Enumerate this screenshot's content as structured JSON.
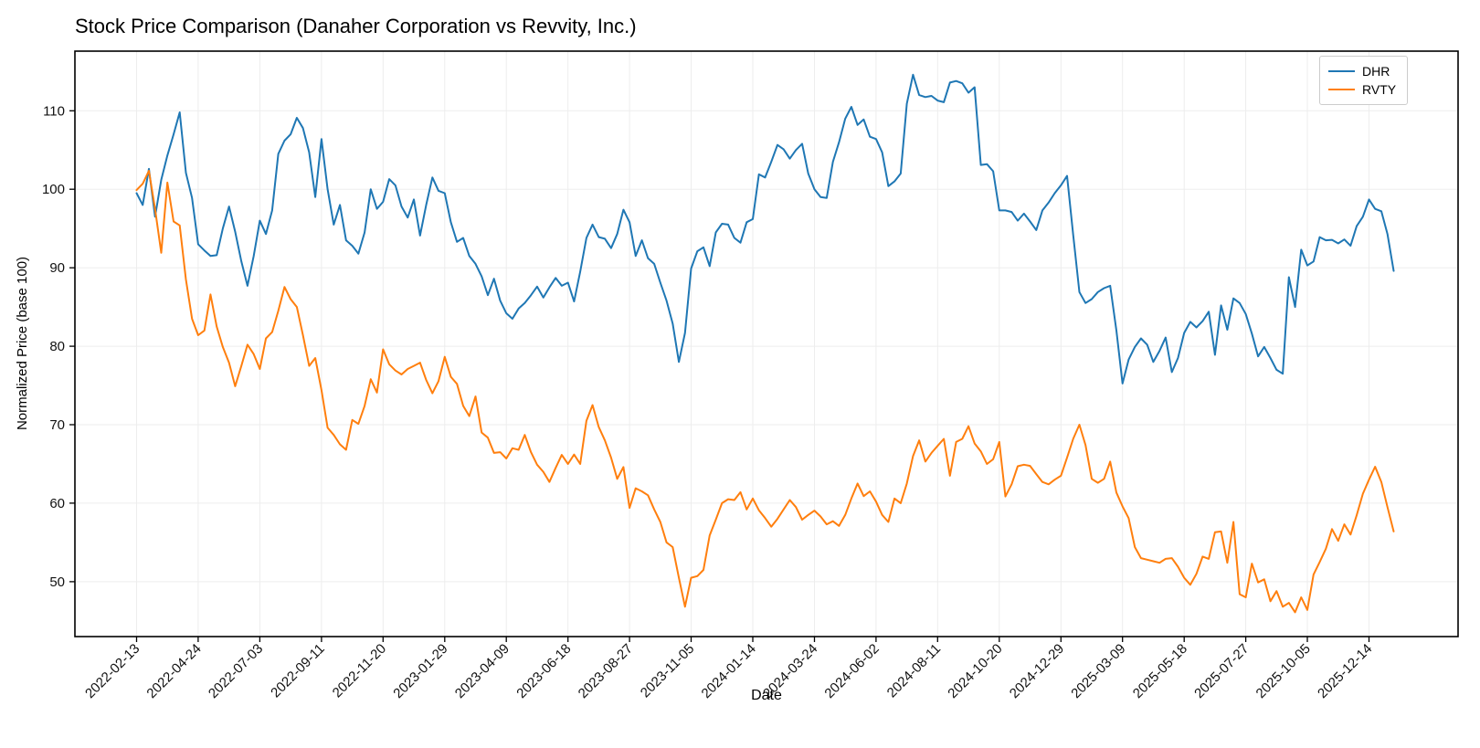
{
  "chart_data": {
    "type": "line",
    "title": "Stock Price Comparison (Danaher Corporation vs Revvity, Inc.)",
    "xlabel": "Date",
    "ylabel": "Normalized Price (base 100)",
    "grid": true,
    "legend": {
      "position": "upper right"
    },
    "y_ticks": [
      50,
      60,
      70,
      80,
      90,
      100,
      110
    ],
    "ylim": [
      43.0,
      117.6
    ],
    "x_tick_labels": [
      "2022-02-13",
      "2022-04-24",
      "2022-07-03",
      "2022-09-11",
      "2022-11-20",
      "2023-01-29",
      "2023-04-09",
      "2023-06-18",
      "2023-08-27",
      "2023-11-05",
      "2024-01-14",
      "2024-03-24",
      "2024-06-02",
      "2024-08-11",
      "2024-10-20",
      "2024-12-29",
      "2025-03-09",
      "2025-05-18",
      "2025-07-27",
      "2025-10-05",
      "2025-12-14"
    ],
    "x_ticks_every_n_points": 10,
    "series": [
      {
        "name": "DHR",
        "color": "#1f77b4",
        "values": [
          99.5,
          98.0,
          102.6,
          96.5,
          101.2,
          104.3,
          107.0,
          109.8,
          102.1,
          98.9,
          93.0,
          92.2,
          91.5,
          91.6,
          95.0,
          97.8,
          94.6,
          90.8,
          87.7,
          91.5,
          96.0,
          94.3,
          97.3,
          104.5,
          106.2,
          107.0,
          109.1,
          107.8,
          104.7,
          99.0,
          106.4,
          100.0,
          95.5,
          98.0,
          93.5,
          92.8,
          91.8,
          94.5,
          100.0,
          97.5,
          98.4,
          101.3,
          100.5,
          97.8,
          96.4,
          98.7,
          94.1,
          98.0,
          101.5,
          99.8,
          99.5,
          95.8,
          93.3,
          93.8,
          91.5,
          90.5,
          88.9,
          86.5,
          88.6,
          85.8,
          84.2,
          83.5,
          84.8,
          85.5,
          86.5,
          87.6,
          86.2,
          87.5,
          88.7,
          87.7,
          88.1,
          85.7,
          89.5,
          93.8,
          95.5,
          93.9,
          93.7,
          92.5,
          94.3,
          97.4,
          95.8,
          91.5,
          93.5,
          91.2,
          90.5,
          88.1,
          85.8,
          82.9,
          78.0,
          81.7,
          89.9,
          92.1,
          92.6,
          90.2,
          94.5,
          95.6,
          95.5,
          93.8,
          93.2,
          95.8,
          96.2,
          101.9,
          101.5,
          103.5,
          105.65,
          105.1,
          103.9,
          105.0,
          105.8,
          102.0,
          100.0,
          99.0,
          98.9,
          103.5,
          106.0,
          109.0,
          110.5,
          108.2,
          108.9,
          106.7,
          106.4,
          104.7,
          100.4,
          101.0,
          102.0,
          110.9,
          114.6,
          112.0,
          111.75,
          111.9,
          111.3,
          111.1,
          113.6,
          113.8,
          113.5,
          112.3,
          113.0,
          103.1,
          103.2,
          102.3,
          97.3,
          97.3,
          97.1,
          96.0,
          96.9,
          95.9,
          94.8,
          97.3,
          98.3,
          99.5,
          100.5,
          101.7,
          94.2,
          86.9,
          85.5,
          86.0,
          86.9,
          87.4,
          87.7,
          82.0,
          75.25,
          78.3,
          79.9,
          81.0,
          80.2,
          78.0,
          79.4,
          81.1,
          76.7,
          78.5,
          81.7,
          83.1,
          82.4,
          83.2,
          84.4,
          78.9,
          85.2,
          82.1,
          86.1,
          85.5,
          84.1,
          81.6,
          78.7,
          79.9,
          78.5,
          77.0,
          76.5,
          88.8,
          85.0,
          92.3,
          90.3,
          90.8,
          93.9,
          93.5,
          93.55,
          93.1,
          93.6,
          92.8,
          95.3,
          96.5,
          98.7,
          97.5,
          97.2,
          94.3,
          89.6
        ]
      },
      {
        "name": "RVTY",
        "color": "#ff7f0e",
        "values": [
          99.9,
          100.7,
          102.35,
          97.5,
          91.9,
          100.85,
          95.9,
          95.4,
          88.5,
          83.5,
          81.4,
          82.0,
          86.6,
          82.5,
          79.9,
          77.9,
          74.9,
          77.5,
          80.2,
          79.0,
          77.1,
          81.0,
          81.8,
          84.5,
          87.55,
          86.0,
          85.0,
          81.4,
          77.5,
          78.5,
          74.4,
          69.6,
          68.7,
          67.5,
          66.8,
          70.6,
          70.1,
          72.4,
          75.8,
          74.1,
          79.6,
          77.7,
          76.9,
          76.4,
          77.1,
          77.5,
          77.9,
          75.7,
          74.0,
          75.55,
          78.65,
          76.1,
          75.2,
          72.4,
          71.1,
          73.6,
          69.0,
          68.35,
          66.4,
          66.5,
          65.7,
          67.0,
          66.8,
          68.7,
          66.5,
          64.9,
          64.0,
          62.7,
          64.5,
          66.15,
          65.0,
          66.2,
          65.0,
          70.5,
          72.5,
          69.7,
          68.0,
          65.8,
          63.1,
          64.6,
          59.4,
          61.9,
          61.5,
          61.0,
          59.2,
          57.6,
          55.0,
          54.4,
          50.5,
          46.8,
          50.5,
          50.7,
          51.5,
          55.9,
          57.9,
          60.0,
          60.5,
          60.4,
          61.4,
          59.2,
          60.6,
          59.1,
          58.1,
          57.0,
          58.0,
          59.2,
          60.4,
          59.5,
          57.9,
          58.5,
          59.05,
          58.3,
          57.3,
          57.7,
          57.1,
          58.5,
          60.6,
          62.5,
          60.9,
          61.5,
          60.2,
          58.5,
          57.6,
          60.6,
          60.0,
          62.5,
          66.0,
          68.0,
          65.3,
          66.4,
          67.3,
          68.2,
          63.5,
          67.8,
          68.2,
          69.8,
          67.6,
          66.6,
          65.0,
          65.6,
          67.8,
          60.85,
          62.4,
          64.7,
          64.9,
          64.75,
          63.7,
          62.7,
          62.4,
          63.0,
          63.5,
          65.8,
          68.2,
          70.0,
          67.4,
          63.1,
          62.6,
          63.1,
          65.3,
          61.35,
          59.6,
          58.1,
          54.4,
          53.0,
          52.8,
          52.6,
          52.4,
          52.9,
          53.0,
          51.9,
          50.5,
          49.6,
          51.0,
          53.2,
          52.9,
          56.3,
          56.4,
          52.4,
          57.6,
          48.4,
          48.0,
          52.3,
          49.9,
          50.3,
          47.5,
          48.8,
          46.8,
          47.3,
          46.1,
          48.0,
          46.4,
          50.9,
          52.5,
          54.2,
          56.7,
          55.2,
          57.3,
          56.0,
          58.45,
          61.2,
          63.0,
          64.65,
          62.7,
          59.5,
          56.4
        ]
      }
    ]
  }
}
